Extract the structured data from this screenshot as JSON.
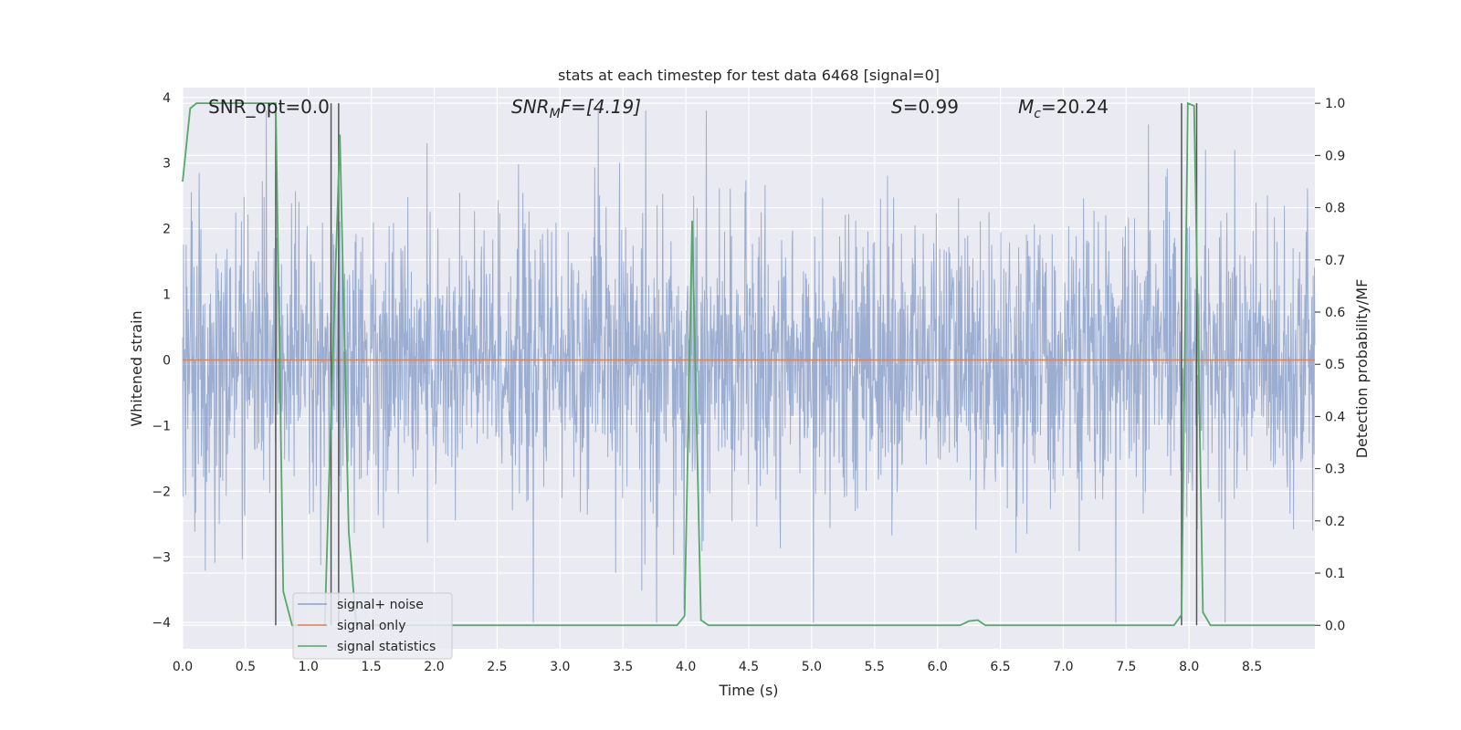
{
  "chart_data": {
    "type": "line",
    "title": "stats at each timestep for test data 6468 [signal=0]",
    "xlabel": "Time (s)",
    "ylabel_left": "Whitened strain",
    "ylabel_right": "Detection probability/MF",
    "xlim": [
      0,
      9
    ],
    "ylim_left": [
      -4.4,
      4.15
    ],
    "ylim_right": [
      -0.045,
      1.03
    ],
    "x_ticks": [
      "0.0",
      "0.5",
      "1.0",
      "1.5",
      "2.0",
      "2.5",
      "3.0",
      "3.5",
      "4.0",
      "4.5",
      "5.0",
      "5.5",
      "6.0",
      "6.5",
      "7.0",
      "7.5",
      "8.0",
      "8.5"
    ],
    "y_left_ticks": [
      "4",
      "3",
      "2",
      "1",
      "0",
      "−1",
      "−2",
      "−3",
      "−4"
    ],
    "y_right_ticks": [
      "1.0",
      "0.9",
      "0.8",
      "0.7",
      "0.6",
      "0.5",
      "0.4",
      "0.3",
      "0.2",
      "0.1",
      "0.0"
    ],
    "grid": true,
    "legend_position": "lower-left",
    "colors": {
      "background": "#eaeaf2",
      "grid": "#ffffff",
      "noise": "#4c72b0",
      "signal": "#dd8452",
      "statistics": "#55a868",
      "vlines": "#555555"
    },
    "annotations": {
      "snr_opt": "SNR_opt=0.0",
      "snr_mf_base": "SNR",
      "snr_mf_sub": "M",
      "snr_mf_rest": "F=[4.19]",
      "s_sym": "S",
      "s_val": "=0.99",
      "mc_base": "M",
      "mc_sub": "c",
      "mc_val": "=20.24"
    },
    "series": [
      {
        "name": "signal+ noise",
        "kind": "noise",
        "x_range": [
          0,
          9
        ],
        "typical_envelope": [
          -2.0,
          2.0
        ],
        "peak_range": [
          -4.0,
          3.8
        ]
      },
      {
        "name": "signal only",
        "kind": "signal",
        "x": [
          0,
          9
        ],
        "y": [
          0,
          0
        ]
      },
      {
        "name": "signal statistics",
        "kind": "statistics",
        "x": [
          0.0,
          0.06,
          0.11,
          0.5,
          0.74,
          0.8,
          0.87,
          0.93,
          1.13,
          1.18,
          1.25,
          1.32,
          1.38,
          3.93,
          3.99,
          4.05,
          4.12,
          4.18,
          6.18,
          6.25,
          6.32,
          6.38,
          7.88,
          7.94,
          7.99,
          8.04,
          8.11,
          8.17,
          8.25,
          9.0
        ],
        "y": [
          0.85,
          0.99,
          1.0,
          1.0,
          1.0,
          0.065,
          0.0,
          0.0,
          0.0,
          0.41,
          0.94,
          0.18,
          0.0,
          0.0,
          0.018,
          0.775,
          0.01,
          0.0,
          0.0,
          0.008,
          0.01,
          0.0,
          0.0,
          0.02,
          1.0,
          0.995,
          0.025,
          0.0,
          0.0,
          0.0
        ]
      }
    ],
    "vertical_lines_x": [
      0.74,
      1.18,
      1.24,
      7.94,
      8.06
    ]
  }
}
